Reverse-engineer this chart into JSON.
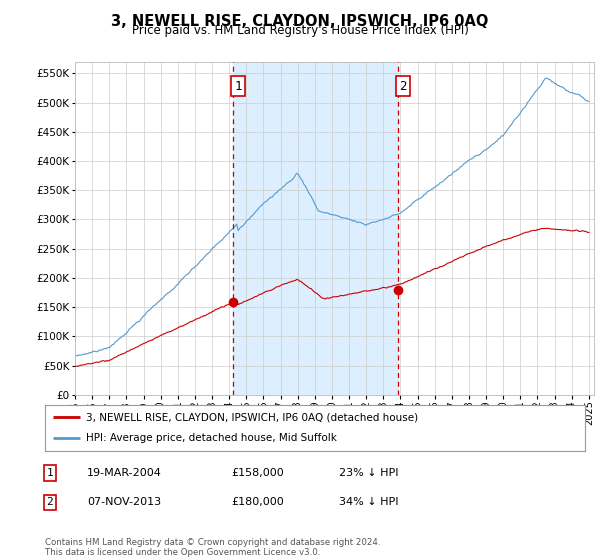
{
  "title": "3, NEWELL RISE, CLAYDON, IPSWICH, IP6 0AQ",
  "subtitle": "Price paid vs. HM Land Registry's House Price Index (HPI)",
  "background_color": "#ffffff",
  "grid_color": "#cccccc",
  "hpi_color": "#5599cc",
  "price_color": "#cc0000",
  "shade_color": "#ddeeff",
  "ylim": [
    0,
    570000
  ],
  "yticks": [
    0,
    50000,
    100000,
    150000,
    200000,
    250000,
    300000,
    350000,
    400000,
    450000,
    500000,
    550000
  ],
  "xstart": 1995,
  "xend": 2025,
  "sale1_year": 2004.21,
  "sale1_price": 158000,
  "sale2_year": 2013.85,
  "sale2_price": 180000,
  "footer": "Contains HM Land Registry data © Crown copyright and database right 2024.\nThis data is licensed under the Open Government Licence v3.0.",
  "legend_line1": "3, NEWELL RISE, CLAYDON, IPSWICH, IP6 0AQ (detached house)",
  "legend_line2": "HPI: Average price, detached house, Mid Suffolk",
  "table_row1": [
    "1",
    "19-MAR-2004",
    "£158,000",
    "23% ↓ HPI"
  ],
  "table_row2": [
    "2",
    "07-NOV-2013",
    "£180,000",
    "34% ↓ HPI"
  ]
}
